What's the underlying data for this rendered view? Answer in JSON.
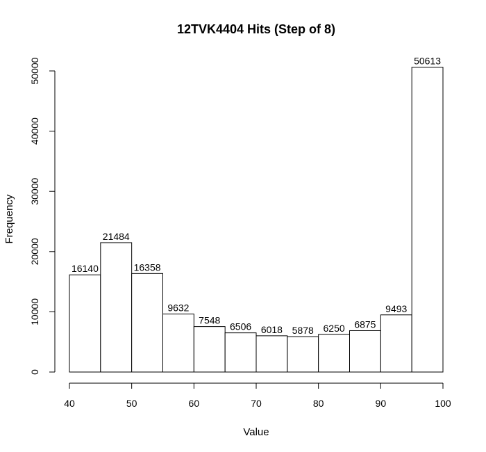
{
  "chart_data": {
    "type": "bar",
    "title": "12TVK4404 Hits (Step of 8)",
    "xlabel": "Value",
    "ylabel": "Frequency",
    "bins": [
      [
        40,
        45
      ],
      [
        45,
        50
      ],
      [
        50,
        55
      ],
      [
        55,
        60
      ],
      [
        60,
        65
      ],
      [
        65,
        70
      ],
      [
        70,
        75
      ],
      [
        75,
        80
      ],
      [
        80,
        85
      ],
      [
        85,
        90
      ],
      [
        90,
        95
      ],
      [
        95,
        100
      ]
    ],
    "values": [
      16140,
      21484,
      16358,
      9632,
      7548,
      6506,
      6018,
      5878,
      6250,
      6875,
      9493,
      50613
    ],
    "xlim": [
      40,
      100
    ],
    "ylim": [
      0,
      50000
    ],
    "x_ticks": [
      40,
      50,
      60,
      70,
      80,
      90,
      100
    ],
    "y_ticks": [
      0,
      10000,
      20000,
      30000,
      40000,
      50000
    ],
    "grid": false,
    "legend": "none"
  }
}
